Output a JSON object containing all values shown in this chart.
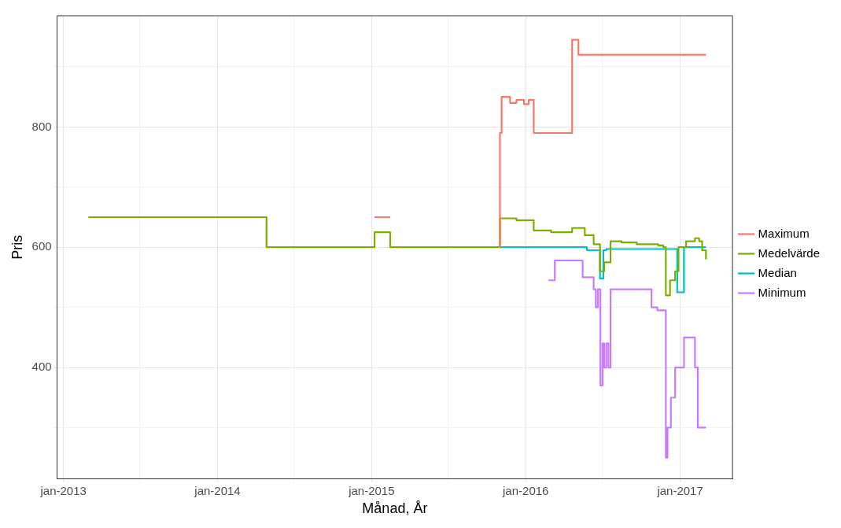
{
  "chart_data": {
    "type": "step",
    "xlabel": "Månad, År",
    "ylabel": "Pris",
    "xlim": [
      "2012-12-17",
      "2017-05-05"
    ],
    "xticks": [
      {
        "value": "2013-01-01",
        "label": "jan-2013"
      },
      {
        "value": "2013-07-01",
        "label": null
      },
      {
        "value": "2014-01-01",
        "label": "jan-2014"
      },
      {
        "value": "2014-07-01",
        "label": null
      },
      {
        "value": "2015-01-01",
        "label": "jan-2015"
      },
      {
        "value": "2015-07-01",
        "label": null
      },
      {
        "value": "2016-01-01",
        "label": "jan-2016"
      },
      {
        "value": "2016-07-01",
        "label": null
      },
      {
        "value": "2017-01-01",
        "label": "jan-2017"
      }
    ],
    "ylim": [
      215,
      985
    ],
    "yticks": [
      {
        "value": 300,
        "label": null
      },
      400,
      {
        "value": 500,
        "label": null
      },
      600,
      {
        "value": 700,
        "label": null
      },
      800,
      {
        "value": 900,
        "label": null
      }
    ],
    "grid": true,
    "legend": "right",
    "line_style": "solid",
    "marker": "none",
    "series": [
      {
        "name": "Maximum",
        "color": "#f8766d",
        "x": [
          "2015-01-08",
          "2015-02-14",
          "2015-02-15",
          "2015-10-30",
          "2015-11-01",
          "2015-11-05",
          "2015-11-25",
          "2015-12-10",
          "2015-12-28",
          "2016-01-08",
          "2016-01-20",
          "2016-04-20",
          "2016-05-05",
          "2017-03-03"
        ],
        "values": [
          650,
          650,
          null,
          600,
          790,
          850,
          840,
          845,
          838,
          845,
          790,
          945,
          920,
          920
        ]
      },
      {
        "name": "Medelvärde",
        "color": "#7cae00",
        "x": [
          "2013-03-01",
          "2014-04-27",
          "2015-01-08",
          "2015-02-14",
          "2015-11-01",
          "2015-12-10",
          "2016-01-20",
          "2016-03-01",
          "2016-04-20",
          "2016-05-20",
          "2016-06-10",
          "2016-06-25",
          "2016-07-05",
          "2016-07-20",
          "2016-08-15",
          "2016-09-20",
          "2016-11-10",
          "2016-11-22",
          "2016-11-28",
          "2016-12-08",
          "2016-12-20",
          "2016-12-28",
          "2017-01-15",
          "2017-02-05",
          "2017-02-15",
          "2017-02-22",
          "2017-03-03"
        ],
        "values": [
          650,
          600,
          625,
          600,
          648,
          645,
          628,
          625,
          632,
          620,
          605,
          560,
          575,
          610,
          608,
          605,
          603,
          600,
          520,
          545,
          560,
          600,
          610,
          615,
          610,
          595,
          580
        ]
      },
      {
        "name": "Median",
        "color": "#00bfc4",
        "x": [
          "2015-11-01",
          "2016-05-25",
          "2016-06-25",
          "2016-07-03",
          "2016-07-10",
          "2016-12-25",
          "2017-01-10",
          "2017-03-03"
        ],
        "values": [
          600,
          595,
          548,
          595,
          597,
          525,
          600,
          600
        ]
      },
      {
        "name": "Minimum",
        "color": "#c77cff",
        "x": [
          "2016-02-24",
          "2016-03-10",
          "2016-05-15",
          "2016-06-10",
          "2016-06-15",
          "2016-06-20",
          "2016-06-26",
          "2016-07-01",
          "2016-07-05",
          "2016-07-10",
          "2016-07-15",
          "2016-07-20",
          "2016-08-15",
          "2016-10-25",
          "2016-11-08",
          "2016-11-28",
          "2016-12-02",
          "2016-12-10",
          "2016-12-20",
          "2017-01-10",
          "2017-02-05",
          "2017-02-12",
          "2017-03-03"
        ],
        "values": [
          545,
          578,
          550,
          530,
          500,
          530,
          370,
          440,
          400,
          440,
          400,
          530,
          530,
          500,
          495,
          250,
          300,
          350,
          400,
          450,
          400,
          300,
          300
        ]
      }
    ]
  }
}
